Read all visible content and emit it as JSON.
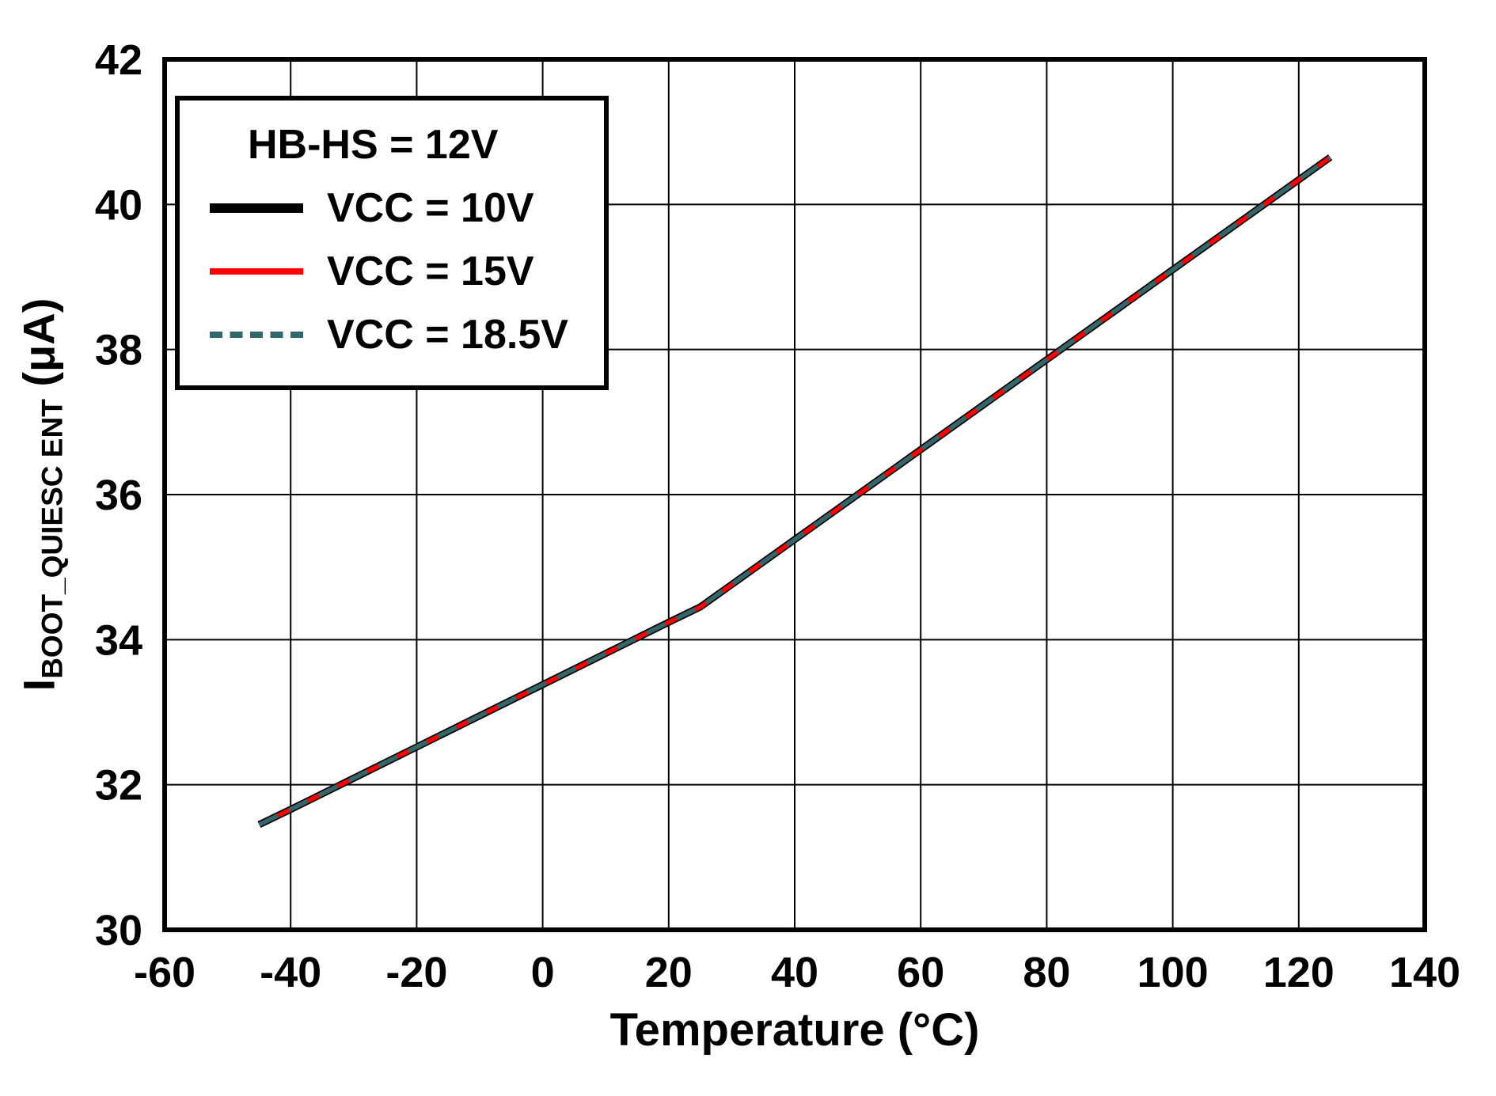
{
  "chart_data": {
    "type": "line",
    "title": "",
    "xlabel": "Temperature (°C)",
    "ylabel": "IBOOT_QUIESC ENT (μA)",
    "ylabel_parts": {
      "main": "I",
      "sub": "BOOT_QUIESC ENT",
      "unit": " (μA)"
    },
    "xlim": [
      -60,
      140
    ],
    "ylim": [
      30,
      42
    ],
    "xticks": [
      -60,
      -40,
      -20,
      0,
      20,
      40,
      60,
      80,
      100,
      120,
      140
    ],
    "yticks": [
      30,
      32,
      34,
      36,
      38,
      40,
      42
    ],
    "grid": true,
    "legend": {
      "position": "top-left",
      "title": "HB-HS = 12V"
    },
    "x": [
      -45,
      -40,
      -30,
      -20,
      -10,
      0,
      10,
      20,
      25,
      30,
      40,
      50,
      60,
      70,
      80,
      90,
      100,
      110,
      120,
      125
    ],
    "series": [
      {
        "name": "VCC = 10V",
        "color": "#000000",
        "style": "solid",
        "values": [
          31.45,
          31.66,
          32.09,
          32.52,
          32.95,
          33.38,
          33.81,
          34.24,
          34.45,
          34.76,
          35.38,
          36.0,
          36.62,
          37.24,
          37.86,
          38.48,
          39.1,
          39.72,
          40.34,
          40.65
        ]
      },
      {
        "name": "VCC = 15V",
        "color": "#ff0000",
        "style": "solid",
        "values": [
          31.45,
          31.66,
          32.09,
          32.52,
          32.95,
          33.38,
          33.81,
          34.24,
          34.45,
          34.76,
          35.38,
          36.0,
          36.62,
          37.24,
          37.86,
          38.48,
          39.1,
          39.72,
          40.34,
          40.65
        ]
      },
      {
        "name": "VCC = 18.5V",
        "color": "#31666b",
        "style": "dashed",
        "values": [
          31.45,
          31.66,
          32.09,
          32.52,
          32.95,
          33.38,
          33.81,
          34.24,
          34.45,
          34.76,
          35.38,
          36.0,
          36.62,
          37.24,
          37.86,
          38.48,
          39.1,
          39.72,
          40.34,
          40.65
        ]
      }
    ]
  }
}
